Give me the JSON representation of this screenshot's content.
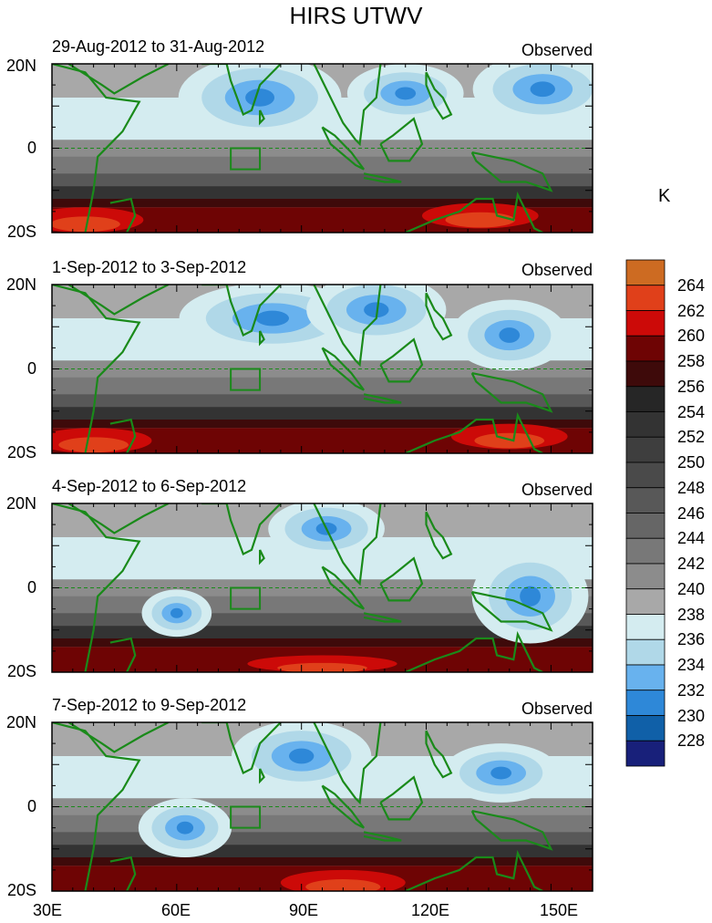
{
  "title": "HIRS UTWV",
  "panels": [
    {
      "date_range": "29-Aug-2012 to 31-Aug-2012",
      "label": "Observed"
    },
    {
      "date_range": "1-Sep-2012 to 3-Sep-2012",
      "label": "Observed"
    },
    {
      "date_range": "4-Sep-2012 to 6-Sep-2012",
      "label": "Observed"
    },
    {
      "date_range": "7-Sep-2012 to 9-Sep-2012",
      "label": "Observed"
    }
  ],
  "lat_labels": [
    "20N",
    "0",
    "20S"
  ],
  "lon_labels": [
    "30E",
    "60E",
    "90E",
    "120E",
    "150E"
  ],
  "colorbar": {
    "unit": "K",
    "levels": [
      "264",
      "262",
      "260",
      "258",
      "256",
      "254",
      "252",
      "250",
      "248",
      "246",
      "244",
      "242",
      "240",
      "238",
      "236",
      "234",
      "232",
      "230",
      "228"
    ],
    "colors": [
      "#cd6b22",
      "#e0401a",
      "#cc0a08",
      "#6e0404",
      "#3e0a0a",
      "#262626",
      "#333333",
      "#3e3e3e",
      "#4a4a4a",
      "#585858",
      "#666666",
      "#787878",
      "#8c8c8c",
      "#a8a8a8",
      "#d4ecf0",
      "#b0d8e8",
      "#68b2ee",
      "#2e88d8",
      "#1060a8",
      "#18207a"
    ]
  },
  "colors": {
    "coastline": "#1a8a1a",
    "equator_line": "#1a8a1a"
  }
}
